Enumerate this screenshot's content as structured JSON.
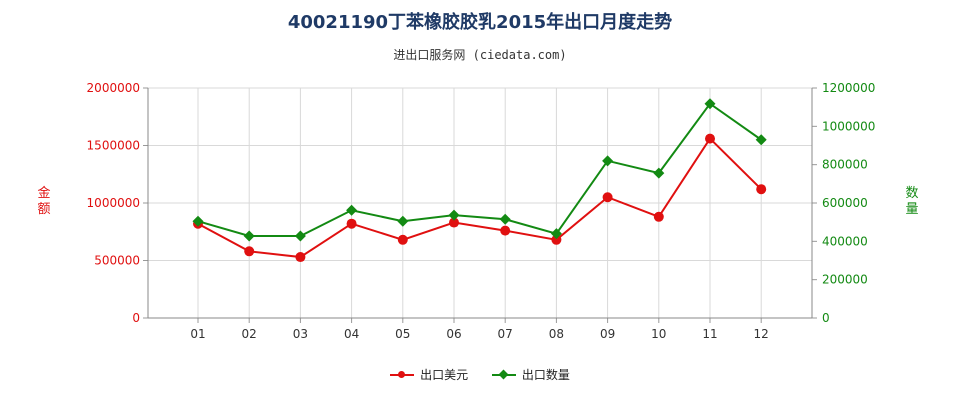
{
  "chart_data": {
    "type": "line",
    "title": "40021190丁苯橡胶胶乳2015年出口月度走势",
    "subtitle": "进出口服务网 (ciedata.com)",
    "categories": [
      "01",
      "02",
      "03",
      "04",
      "05",
      "06",
      "07",
      "08",
      "09",
      "10",
      "11",
      "12"
    ],
    "y_left": {
      "label": "金额",
      "range": [
        0,
        2000000
      ],
      "ticks": [
        "0",
        "500000",
        "1000000",
        "1500000",
        "2000000"
      ],
      "color": "#e01010"
    },
    "y_right": {
      "label": "数量",
      "range": [
        0,
        1200000
      ],
      "ticks": [
        "0",
        "200000",
        "400000",
        "600000",
        "800000",
        "1000000",
        "1200000"
      ],
      "color": "#138a13"
    },
    "series": [
      {
        "name": "出口美元",
        "axis": "left",
        "color": "#e01010",
        "marker": "circle",
        "values": [
          820000,
          580000,
          530000,
          820000,
          680000,
          830000,
          760000,
          680000,
          1050000,
          880000,
          1560000,
          1120000
        ]
      },
      {
        "name": "出口数量",
        "axis": "right",
        "color": "#138a13",
        "marker": "diamond",
        "values": [
          505000,
          428000,
          428000,
          562000,
          505000,
          537000,
          515000,
          440000,
          820000,
          756000,
          1118000,
          930000
        ]
      }
    ],
    "grid": true,
    "legend_position": "bottom-center"
  }
}
